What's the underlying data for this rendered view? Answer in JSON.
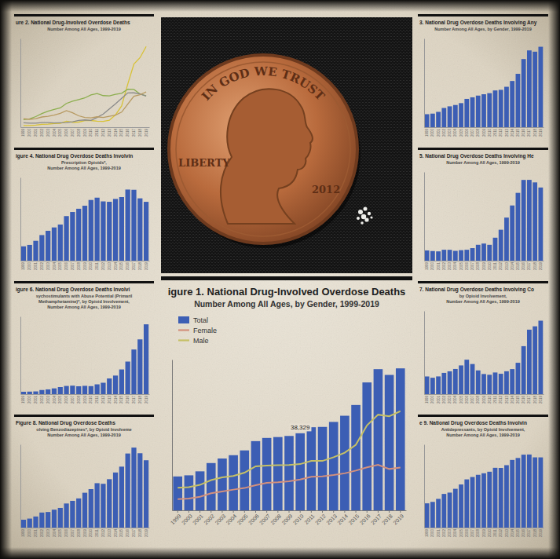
{
  "chart_data": [
    {
      "type": "bar",
      "title": "igure 1. National Drug-Involved Overdose Deaths",
      "subtitle": [
        "Number Among All Ages, by Gender, 1999-2019"
      ],
      "categories": [
        "1999",
        "2000",
        "2001",
        "2002",
        "2003",
        "2004",
        "2005",
        "2006",
        "2007",
        "2008",
        "2009",
        "2010",
        "2011",
        "2012",
        "2013",
        "2014",
        "2015",
        "2016",
        "2017",
        "2018",
        "2019"
      ],
      "series": [
        {
          "name": "Total",
          "type": "bar",
          "color": "#3c5eb4",
          "values": [
            16849,
            17415,
            19394,
            23518,
            25785,
            27424,
            29813,
            34425,
            36010,
            36450,
            37004,
            38329,
            41340,
            41502,
            43982,
            47055,
            52404,
            63632,
            70237,
            67367,
            70630
          ],
          "value_labels": [
            null,
            null,
            null,
            null,
            null,
            null,
            null,
            null,
            null,
            null,
            null,
            "38,329",
            null,
            null,
            null,
            null,
            null,
            null,
            null,
            null,
            null
          ]
        },
        {
          "name": "Female",
          "type": "line",
          "color": "#d3907c",
          "values": [
            5591,
            5852,
            6736,
            8490,
            9386,
            10304,
            11089,
            12532,
            13712,
            13982,
            14411,
            15323,
            16719,
            16937,
            17579,
            18407,
            19782,
            21383,
            22637,
            20565,
            21284
          ]
        },
        {
          "name": "Male",
          "type": "line",
          "color": "#c6c065",
          "values": [
            11258,
            11563,
            12658,
            15028,
            16399,
            17120,
            18724,
            21893,
            22298,
            22468,
            22593,
            23006,
            24621,
            24565,
            26403,
            28648,
            32622,
            42249,
            47600,
            46802,
            49346
          ]
        }
      ],
      "ylim": [
        0,
        75000
      ],
      "legend": "top-left",
      "tick_labels": "x"
    },
    {
      "type": "line",
      "title": "ure 2. National Drug-Involved Overdose Deaths",
      "subtitle": [
        "Number Among All Ages, 1999-2019"
      ],
      "categories": [
        "1999",
        "2000",
        "2001",
        "2002",
        "2003",
        "2004",
        "2005",
        "2006",
        "2007",
        "2008",
        "2009",
        "2010",
        "2011",
        "2012",
        "2013",
        "2014",
        "2015",
        "2016",
        "2017",
        "2018",
        "2019"
      ],
      "series": [
        {
          "color": "#d8c236",
          "values": [
            730,
            782,
            957,
            1295,
            1400,
            1664,
            1742,
            2707,
            2213,
            2306,
            2946,
            3007,
            2666,
            2628,
            3105,
            5544,
            9580,
            19413,
            28466,
            31335,
            36359
          ]
        },
        {
          "color": "#8cae4e",
          "values": [
            3442,
            3785,
            4770,
            6149,
            7175,
            7983,
            8679,
            10708,
            11694,
            12473,
            13200,
            14583,
            15140,
            14240,
            14145,
            14838,
            15281,
            17087,
            17029,
            14975,
            14139
          ]
        },
        {
          "color": "#8a8a8a",
          "values": [
            1960,
            1842,
            1779,
            2089,
            2080,
            1878,
            2009,
            2088,
            2399,
            3041,
            3278,
            3036,
            4397,
            5925,
            8257,
            10574,
            12989,
            15469,
            15482,
            14996,
            14019
          ]
        },
        {
          "color": "#b79a62",
          "values": [
            3822,
            3544,
            3833,
            4599,
            4933,
            5443,
            6208,
            7448,
            6512,
            5129,
            4350,
            4183,
            4681,
            4404,
            4944,
            5415,
            6784,
            10375,
            13942,
            14666,
            15883
          ]
        }
      ],
      "ylim": [
        0,
        40000
      ],
      "tick_labels": "x"
    },
    {
      "type": "bar",
      "title": "igure 4. National Drug Overdose Deaths Involvin",
      "subtitle": [
        "Prescription Opioids*,",
        "Number Among All Ages, 1999-2019"
      ],
      "categories": [
        "1999",
        "2000",
        "2001",
        "2002",
        "2003",
        "2004",
        "2005",
        "2006",
        "2007",
        "2008",
        "2009",
        "2010",
        "2011",
        "2012",
        "2013",
        "2014",
        "2015",
        "2016",
        "2017",
        "2018",
        "2019"
      ],
      "values": [
        3442,
        3785,
        4770,
        6149,
        7175,
        7983,
        8679,
        10708,
        11694,
        12473,
        13200,
        14583,
        15140,
        14240,
        14145,
        14838,
        15281,
        17087,
        17029,
        14975,
        14139
      ],
      "color": "#3c5eb4",
      "ylim": [
        0,
        20000
      ],
      "tick_labels": "x"
    },
    {
      "type": "bar",
      "title": "igure 6. National Drug Overdose Deaths Involvi",
      "subtitle": [
        "sychostimulants with Abuse Potential (Primaril",
        "Methamphetamine)*, by Opioid Involvement,",
        "Number Among All Ages, 1999-2019"
      ],
      "categories": [
        "1999",
        "2000",
        "2001",
        "2002",
        "2003",
        "2004",
        "2005",
        "2006",
        "2007",
        "2008",
        "2009",
        "2010",
        "2011",
        "2012",
        "2013",
        "2014",
        "2015",
        "2016",
        "2017",
        "2018",
        "2019"
      ],
      "values": [
        547,
        578,
        627,
        954,
        1096,
        1331,
        1636,
        1894,
        1961,
        1820,
        1922,
        1854,
        2266,
        2635,
        3627,
        4298,
        5716,
        7542,
        10333,
        12676,
        16167
      ],
      "color": "#3c5eb4",
      "ylim": [
        0,
        18000
      ],
      "tick_labels": "x"
    },
    {
      "type": "bar",
      "title": "Figure 8. National Drug Overdose Deaths",
      "subtitle": [
        "olving Benzodiazepines*, by Opioid Involveme",
        "Number Among All Ages, 1999-2019"
      ],
      "categories": [
        "1999",
        "2000",
        "2001",
        "2002",
        "2003",
        "2004",
        "2005",
        "2006",
        "2007",
        "2008",
        "2009",
        "2010",
        "2011",
        "2012",
        "2013",
        "2014",
        "2015",
        "2016",
        "2017",
        "2018",
        "2019"
      ],
      "values": [
        1135,
        1298,
        1602,
        2170,
        2248,
        2585,
        2834,
        3475,
        3855,
        4209,
        5024,
        5547,
        6405,
        6314,
        6978,
        7945,
        8791,
        10684,
        11537,
        10724,
        9711
      ],
      "color": "#3c5eb4",
      "ylim": [
        0,
        12000
      ],
      "tick_labels": "x"
    },
    {
      "type": "bar",
      "title": "3. National Drug Overdose Deaths Involving Any",
      "subtitle": [
        "Number Among All Ages, by Gender, 1999-2019"
      ],
      "categories": [
        "1999",
        "2000",
        "2001",
        "2002",
        "2003",
        "2004",
        "2005",
        "2006",
        "2007",
        "2008",
        "2009",
        "2010",
        "2011",
        "2012",
        "2013",
        "2014",
        "2015",
        "2016",
        "2017",
        "2018",
        "2019"
      ],
      "values": [
        8048,
        8407,
        9496,
        11920,
        12940,
        13756,
        14918,
        17545,
        18516,
        19582,
        20422,
        21089,
        22784,
        23166,
        25052,
        28647,
        33091,
        42249,
        47600,
        46802,
        49860
      ],
      "color": "#3c5eb4",
      "ylim": [
        0,
        55000
      ],
      "tick_labels": "x"
    },
    {
      "type": "bar",
      "title": "5. National Drug Overdose Deaths Involving He",
      "subtitle": [
        "Number Among All Ages, 1999-2019"
      ],
      "categories": [
        "1999",
        "2000",
        "2001",
        "2002",
        "2003",
        "2004",
        "2005",
        "2006",
        "2007",
        "2008",
        "2009",
        "2010",
        "2011",
        "2012",
        "2013",
        "2014",
        "2015",
        "2016",
        "2017",
        "2018",
        "2019"
      ],
      "values": [
        1960,
        1842,
        1779,
        2089,
        2080,
        1878,
        2009,
        2088,
        2399,
        3041,
        3278,
        3036,
        4397,
        5925,
        8257,
        10574,
        12989,
        15469,
        15482,
        14996,
        14019
      ],
      "color": "#3c5eb4",
      "ylim": [
        0,
        17000
      ],
      "tick_labels": "x"
    },
    {
      "type": "bar",
      "title": "7. National Drug Overdose Deaths Involving Co",
      "subtitle": [
        "by Opioid Involvement,",
        "Number Among All Ages, 1999-2019"
      ],
      "categories": [
        "1999",
        "2000",
        "2001",
        "2002",
        "2003",
        "2004",
        "2005",
        "2006",
        "2007",
        "2008",
        "2009",
        "2010",
        "2011",
        "2012",
        "2013",
        "2014",
        "2015",
        "2016",
        "2017",
        "2018",
        "2019"
      ],
      "values": [
        3822,
        3544,
        3833,
        4599,
        4933,
        5443,
        6208,
        7448,
        6512,
        5129,
        4350,
        4183,
        4681,
        4404,
        4944,
        5415,
        6784,
        10375,
        13942,
        14666,
        15883
      ],
      "color": "#3c5eb4",
      "ylim": [
        0,
        18000
      ],
      "tick_labels": "x"
    },
    {
      "type": "bar",
      "title": "e 9. National Drug Overdose Deaths Involvin",
      "subtitle": [
        "Antidepressants, by Opioid Involvement,",
        "Number Among All Ages, 1999-2019"
      ],
      "categories": [
        "1999",
        "2000",
        "2001",
        "2002",
        "2003",
        "2004",
        "2005",
        "2006",
        "2007",
        "2008",
        "2009",
        "2010",
        "2011",
        "2012",
        "2013",
        "2014",
        "2015",
        "2016",
        "2017",
        "2018",
        "2019"
      ],
      "values": [
        1749,
        1853,
        2071,
        2428,
        2522,
        2797,
        3109,
        3476,
        3647,
        3806,
        3916,
        4028,
        4310,
        4301,
        4500,
        4877,
        5019,
        5258,
        5269,
        5064,
        5062
      ],
      "color": "#3c5eb4",
      "ylim": [
        0,
        6000
      ],
      "tick_labels": "x"
    }
  ],
  "photo": {
    "coin": {
      "top": "IN GOD WE TRUST",
      "left": "LIBERTY",
      "date": "2012"
    }
  }
}
